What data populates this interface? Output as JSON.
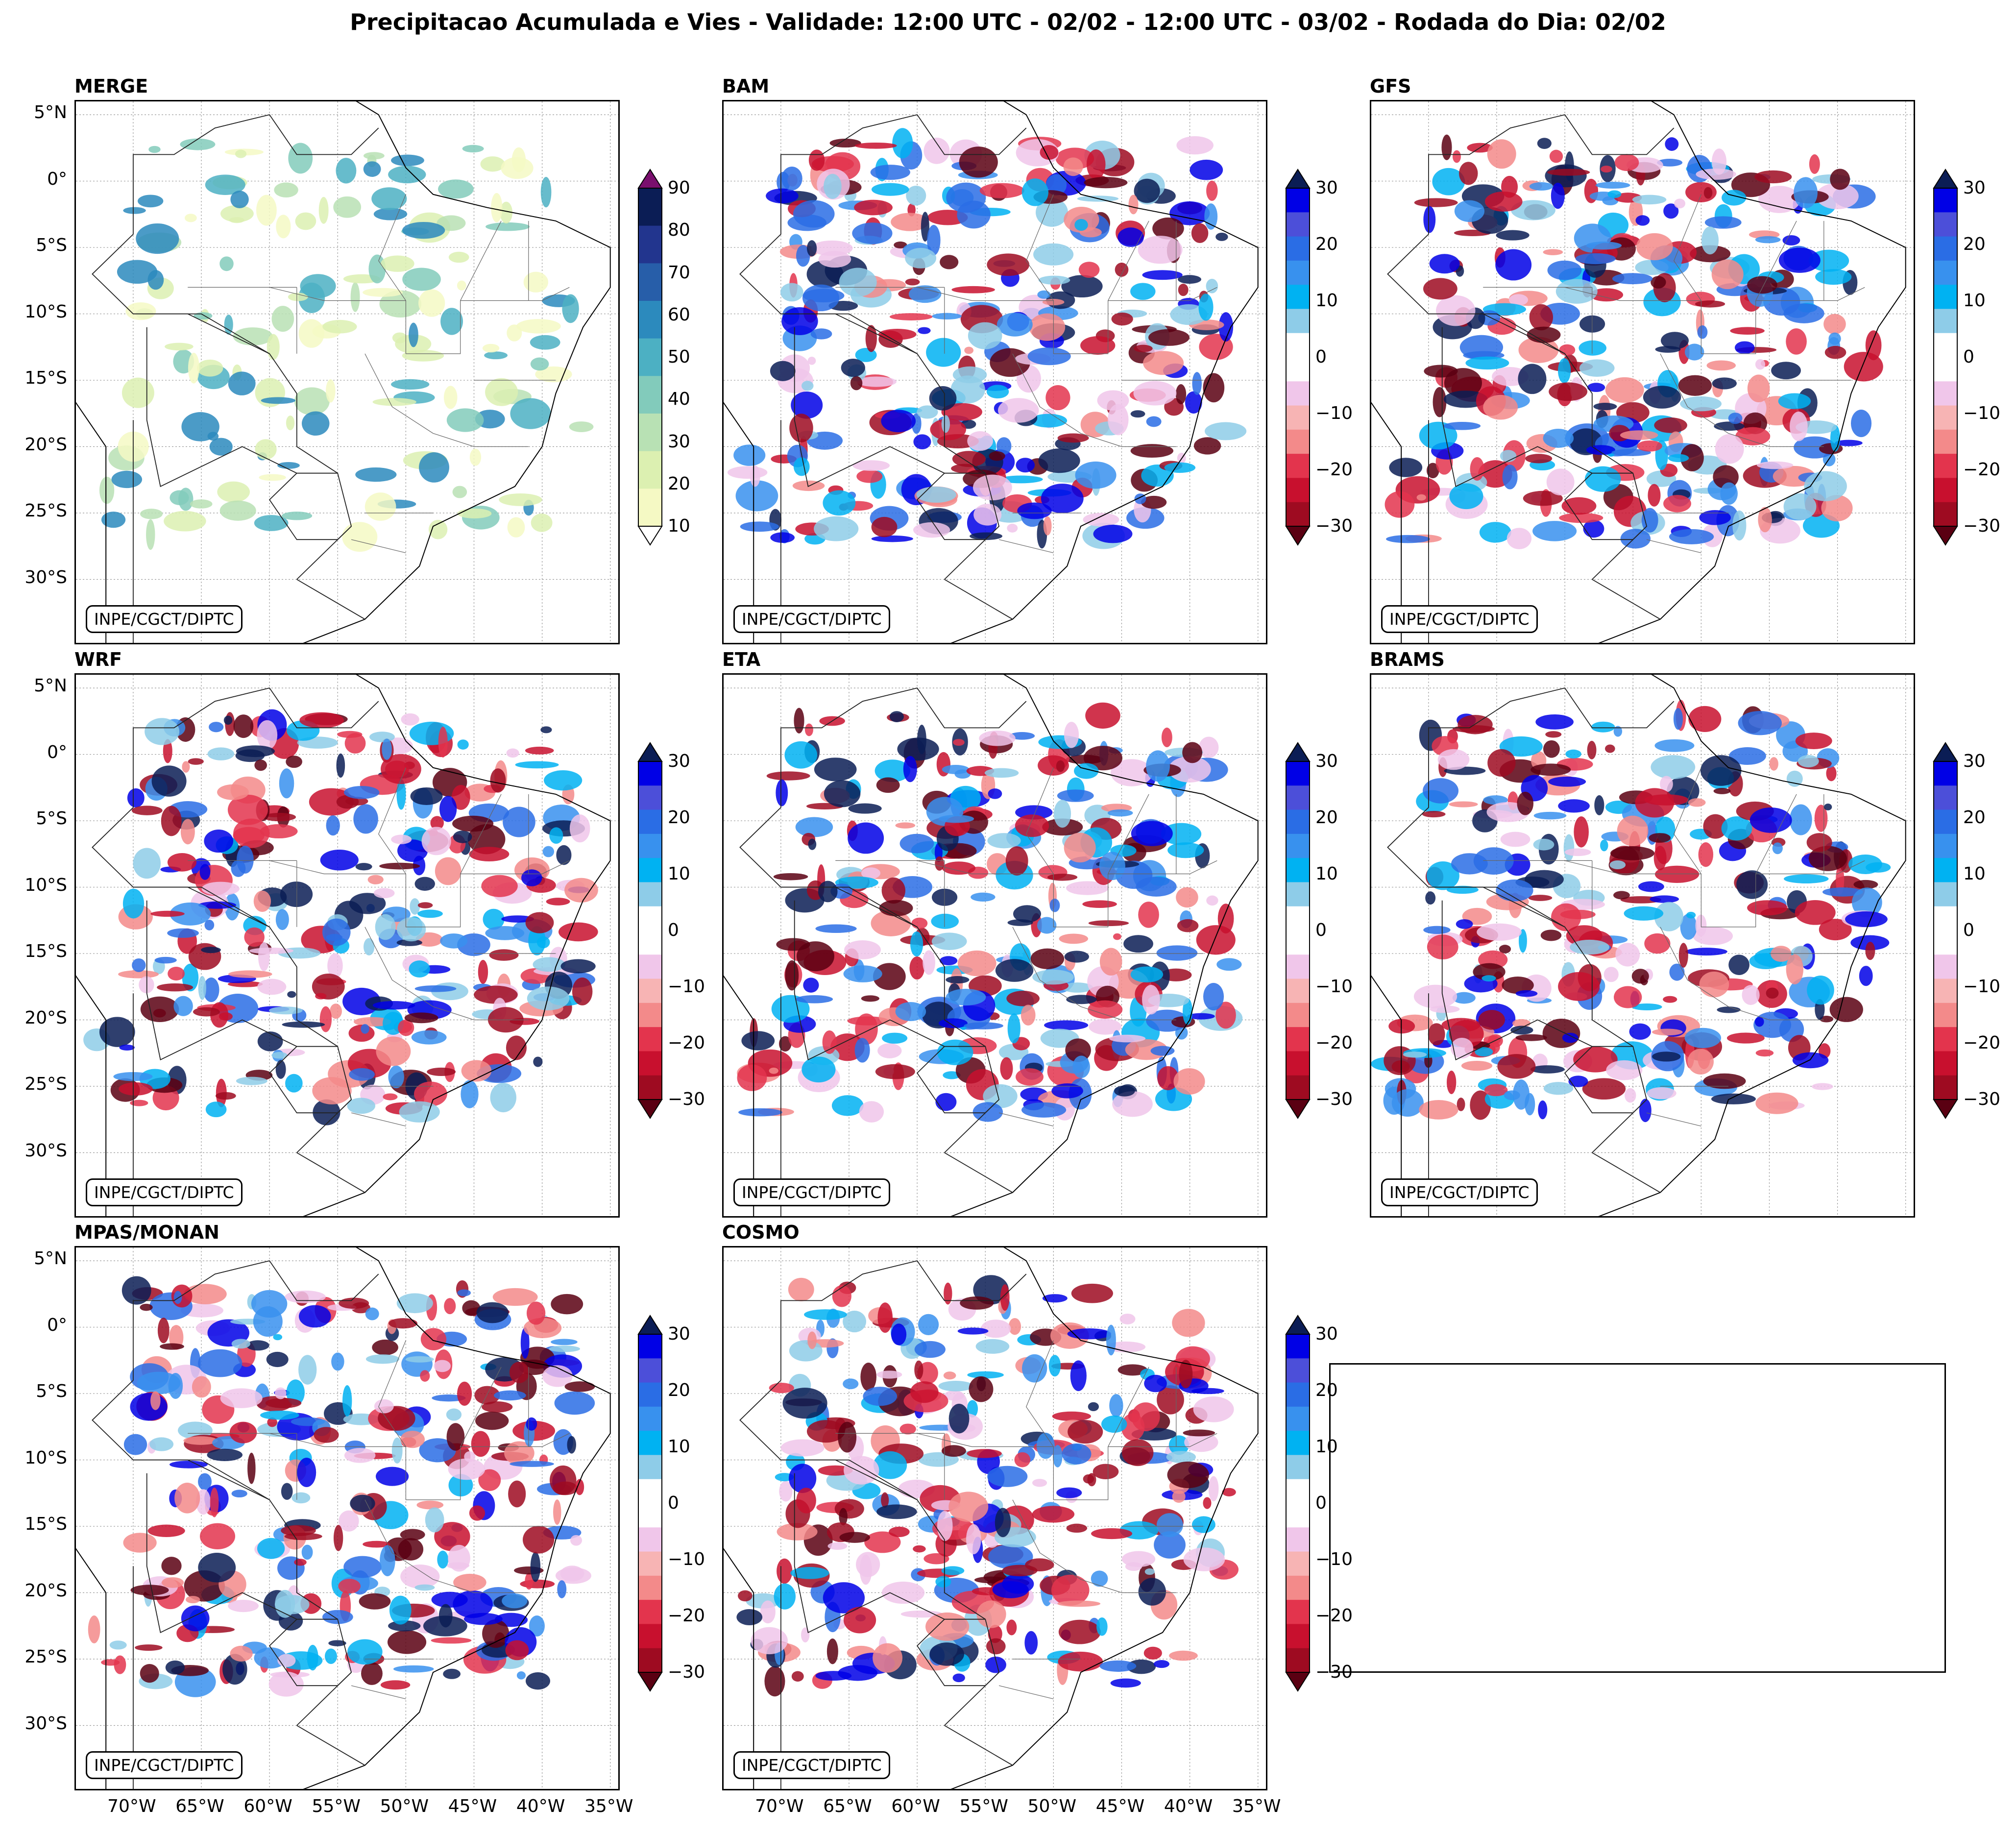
{
  "title": "Precipitacao Acumulada e Vies - Validade: 12:00 UTC - 02/02 - 12:00 UTC - 03/02 - Rodada do Dia: 02/02",
  "credit": "INPE/CGCT/DIPTC",
  "lat_labels": [
    "5°N",
    "0°",
    "5°S",
    "10°S",
    "15°S",
    "20°S",
    "25°S",
    "30°S"
  ],
  "lon_labels": [
    "70°W",
    "65°W",
    "60°W",
    "55°W",
    "50°W",
    "45°W",
    "40°W",
    "35°W"
  ],
  "panels": [
    {
      "name": "MERGE",
      "type": "precip",
      "colorbar": "precip"
    },
    {
      "name": "BAM",
      "type": "bias",
      "colorbar": "bias"
    },
    {
      "name": "GFS",
      "type": "bias",
      "colorbar": "bias"
    },
    {
      "name": "WRF",
      "type": "bias",
      "colorbar": "bias"
    },
    {
      "name": "ETA",
      "type": "bias",
      "colorbar": "bias"
    },
    {
      "name": "BRAMS",
      "type": "bias",
      "colorbar": "bias"
    },
    {
      "name": "MPAS/MONAN",
      "type": "bias",
      "colorbar": "bias"
    },
    {
      "name": "COSMO",
      "type": "bias",
      "colorbar": "bias"
    }
  ],
  "colorbars": {
    "precip": {
      "ticks": [
        "90",
        "80",
        "70",
        "60",
        "50",
        "40",
        "30",
        "20",
        "10"
      ],
      "colors": [
        "#f5f9c4",
        "#dcf0b1",
        "#b8e1b4",
        "#82cbbb",
        "#4cb0c3",
        "#2c8abd",
        "#275ea9",
        "#22358e",
        "#0b1d55"
      ],
      "over": "#7a0f6e",
      "under": "#ffffff"
    },
    "bias": {
      "ticks": [
        "30",
        "20",
        "10",
        "0",
        "−10",
        "−20",
        "−30"
      ],
      "colors": [
        "#9e0b21",
        "#c8102e",
        "#e3344d",
        "#f38a8a",
        "#f7b4b4",
        "#f0c6ea",
        "#ffffff",
        "#ffffff",
        "#8ecce8",
        "#00b2f2",
        "#3891ee",
        "#2a6de5",
        "#4c4fd9",
        "#0000e6"
      ],
      "over": "#0b1d55",
      "under": "#5a0012"
    }
  }
}
